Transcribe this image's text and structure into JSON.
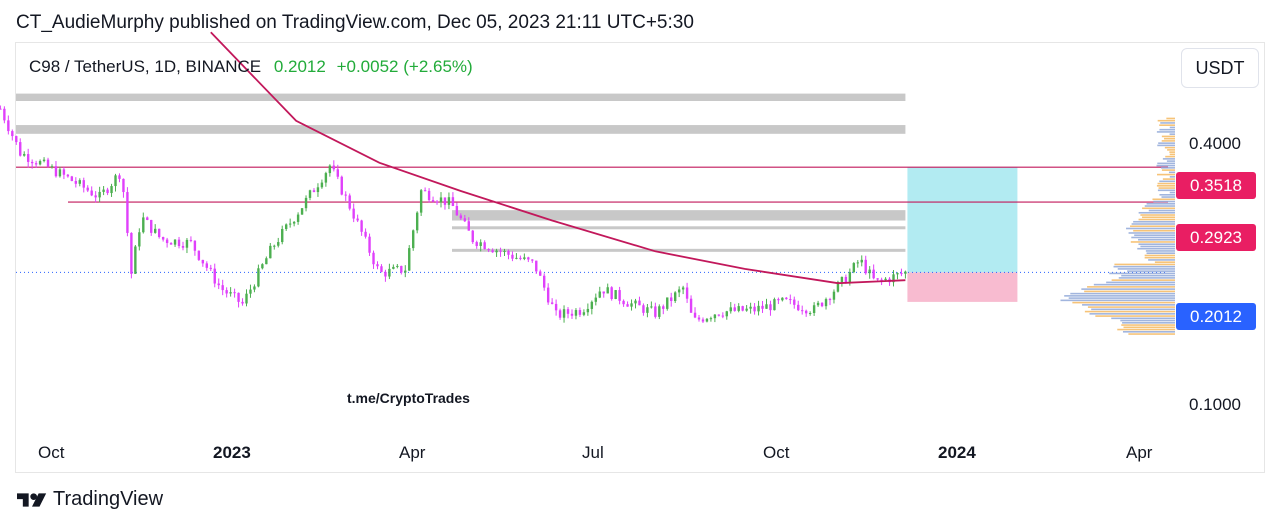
{
  "header": {
    "published_by": "CT_AudieMurphy published on TradingView.com, Dec 05, 2023 21:11 UTC+5:30"
  },
  "legend": {
    "symbol": "C98 / TetherUS, 1D, BINANCE",
    "last_price": "0.2012",
    "change": "+0.0052 (+2.65%)"
  },
  "currency_button": "USDT",
  "watermark": "t.me/CryptoTrades",
  "footer": {
    "brand": "TradingView"
  },
  "colors": {
    "up": "#26a69a",
    "up_candle": "#4caf50",
    "down_candle": "#e040fb",
    "ma_line": "#c2185b",
    "level_line": "#c2185b",
    "tag_red": "#e91e63",
    "tag_blue": "#2962ff",
    "target_zone": "#b2ebf2",
    "stop_zone": "#f8bbd0",
    "gray_zone": "#c8c8c8"
  },
  "chart_data": {
    "type": "candlestick",
    "symbol": "C98 / TetherUS",
    "interval": "1D",
    "exchange": "BINANCE",
    "last": 0.2012,
    "change": 0.0052,
    "change_pct": 2.65,
    "y_axis": {
      "ticks": [
        "0.4000",
        "0.1000"
      ],
      "scale": "log"
    },
    "x_axis": {
      "ticks": [
        "Oct",
        "2023",
        "Apr",
        "Jul",
        "Oct",
        "2024",
        "Apr"
      ],
      "bold_ticks": [
        "2023",
        "2024"
      ]
    },
    "price_tags": [
      {
        "value": "0.3518",
        "kind": "level"
      },
      {
        "value": "0.2923",
        "kind": "level"
      },
      {
        "value": "0.2012",
        "kind": "last"
      }
    ],
    "horizontal_levels": [
      0.3518,
      0.2923
    ],
    "position": {
      "entry": 0.2012,
      "target": 0.3518,
      "stop": 0.172
    },
    "resistance_zones": [
      [
        0.5,
        0.52
      ],
      [
        0.42,
        0.44
      ],
      [
        0.265,
        0.28
      ],
      [
        0.254,
        0.257
      ],
      [
        0.225,
        0.228
      ]
    ],
    "price_path": [
      [
        "2022-09-05",
        0.48
      ],
      [
        "2022-09-15",
        0.38
      ],
      [
        "2022-09-30",
        0.35
      ],
      [
        "2022-10-10",
        0.33
      ],
      [
        "2022-10-25",
        0.3
      ],
      [
        "2022-11-05",
        0.345
      ],
      [
        "2022-11-10",
        0.2
      ],
      [
        "2022-11-15",
        0.27
      ],
      [
        "2022-11-25",
        0.24
      ],
      [
        "2022-12-10",
        0.235
      ],
      [
        "2022-12-25",
        0.185
      ],
      [
        "2023-01-05",
        0.17
      ],
      [
        "2023-01-20",
        0.23
      ],
      [
        "2023-02-05",
        0.29
      ],
      [
        "2023-02-18",
        0.355
      ],
      [
        "2023-03-01",
        0.28
      ],
      [
        "2023-03-15",
        0.2
      ],
      [
        "2023-03-28",
        0.205
      ],
      [
        "2023-04-05",
        0.31
      ],
      [
        "2023-04-20",
        0.29
      ],
      [
        "2023-05-01",
        0.24
      ],
      [
        "2023-05-15",
        0.225
      ],
      [
        "2023-06-01",
        0.21
      ],
      [
        "2023-06-12",
        0.16
      ],
      [
        "2023-06-25",
        0.165
      ],
      [
        "2023-07-05",
        0.185
      ],
      [
        "2023-07-20",
        0.17
      ],
      [
        "2023-08-01",
        0.162
      ],
      [
        "2023-08-15",
        0.185
      ],
      [
        "2023-08-20",
        0.155
      ],
      [
        "2023-09-01",
        0.163
      ],
      [
        "2023-09-20",
        0.165
      ],
      [
        "2023-10-05",
        0.172
      ],
      [
        "2023-10-20",
        0.165
      ],
      [
        "2023-11-05",
        0.195
      ],
      [
        "2023-11-12",
        0.215
      ],
      [
        "2023-11-20",
        0.19
      ],
      [
        "2023-12-05",
        0.2012
      ]
    ],
    "moving_average": [
      [
        "2022-12-20",
        0.72
      ],
      [
        "2023-02-01",
        0.45
      ],
      [
        "2023-03-15",
        0.36
      ],
      [
        "2023-04-25",
        0.31
      ],
      [
        "2023-06-10",
        0.265
      ],
      [
        "2023-08-01",
        0.225
      ],
      [
        "2023-09-15",
        0.205
      ],
      [
        "2023-11-01",
        0.19
      ],
      [
        "2023-12-05",
        0.193
      ]
    ]
  }
}
